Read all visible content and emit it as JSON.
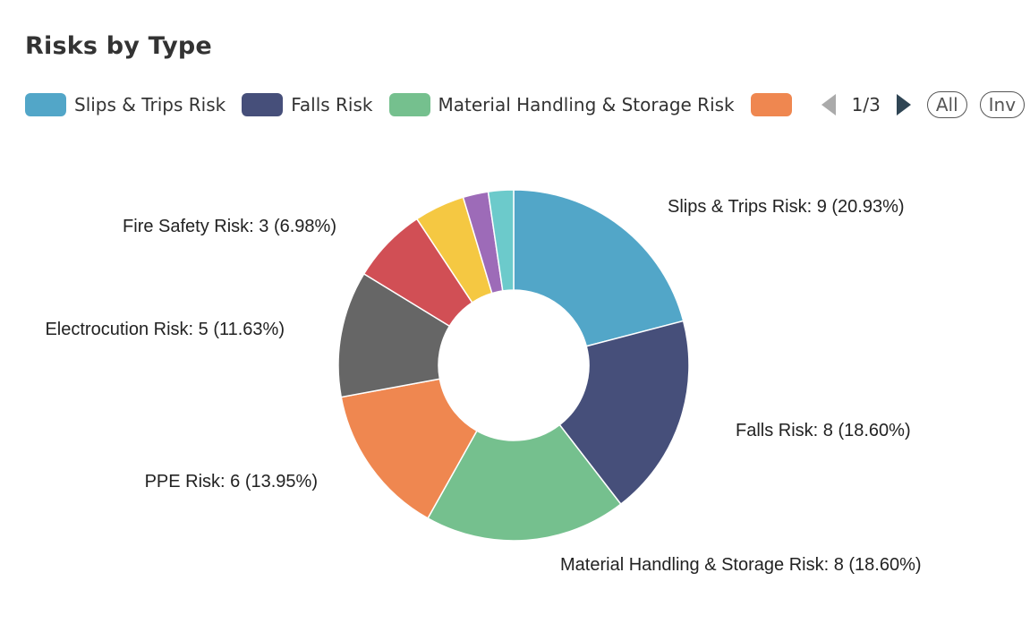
{
  "title": "Risks by Type",
  "legend": {
    "page_text": "1/3",
    "all_label": "All",
    "inv_label": "Inv",
    "visible_items": [
      {
        "label": "Slips & Trips Risk",
        "color": "#52a6c8"
      },
      {
        "label": "Falls Risk",
        "color": "#464f7a"
      },
      {
        "label": "Material Handling & Storage Risk",
        "color": "#75c08e"
      },
      {
        "label": "",
        "color": "#ef8750"
      }
    ]
  },
  "chart_data": {
    "type": "pie",
    "variant": "donut",
    "title": "Risks by Type",
    "legend_position": "top",
    "series": [
      {
        "name": "Slips & Trips Risk",
        "value": 9,
        "percent": "20.93%",
        "color": "#52a6c8",
        "label": "Slips & Trips Risk: 9 (20.93%)"
      },
      {
        "name": "Falls Risk",
        "value": 8,
        "percent": "18.60%",
        "color": "#464f7a",
        "label": "Falls Risk: 8 (18.60%)"
      },
      {
        "name": "Material Handling & Storage Risk",
        "value": 8,
        "percent": "18.60%",
        "color": "#75c08e",
        "label": "Material Handling & Storage Risk: 8 (18.60%)"
      },
      {
        "name": "PPE Risk",
        "value": 6,
        "percent": "13.95%",
        "color": "#ef8750",
        "label": "PPE Risk: 6 (13.95%)"
      },
      {
        "name": "Electrocution Risk",
        "value": 5,
        "percent": "11.63%",
        "color": "#666666",
        "label": "Electrocution Risk: 5 (11.63%)"
      },
      {
        "name": "Fire Safety Risk",
        "value": 3,
        "percent": "6.98%",
        "color": "#d14f55",
        "label": "Fire Safety Risk: 3 (6.98%)"
      },
      {
        "name": "",
        "value": 2,
        "color": "#f5c842",
        "label": ""
      },
      {
        "name": "",
        "value": 1,
        "color": "#9d6bb8",
        "label": ""
      },
      {
        "name": "",
        "value": 1,
        "color": "#6ccacb",
        "label": ""
      }
    ]
  }
}
